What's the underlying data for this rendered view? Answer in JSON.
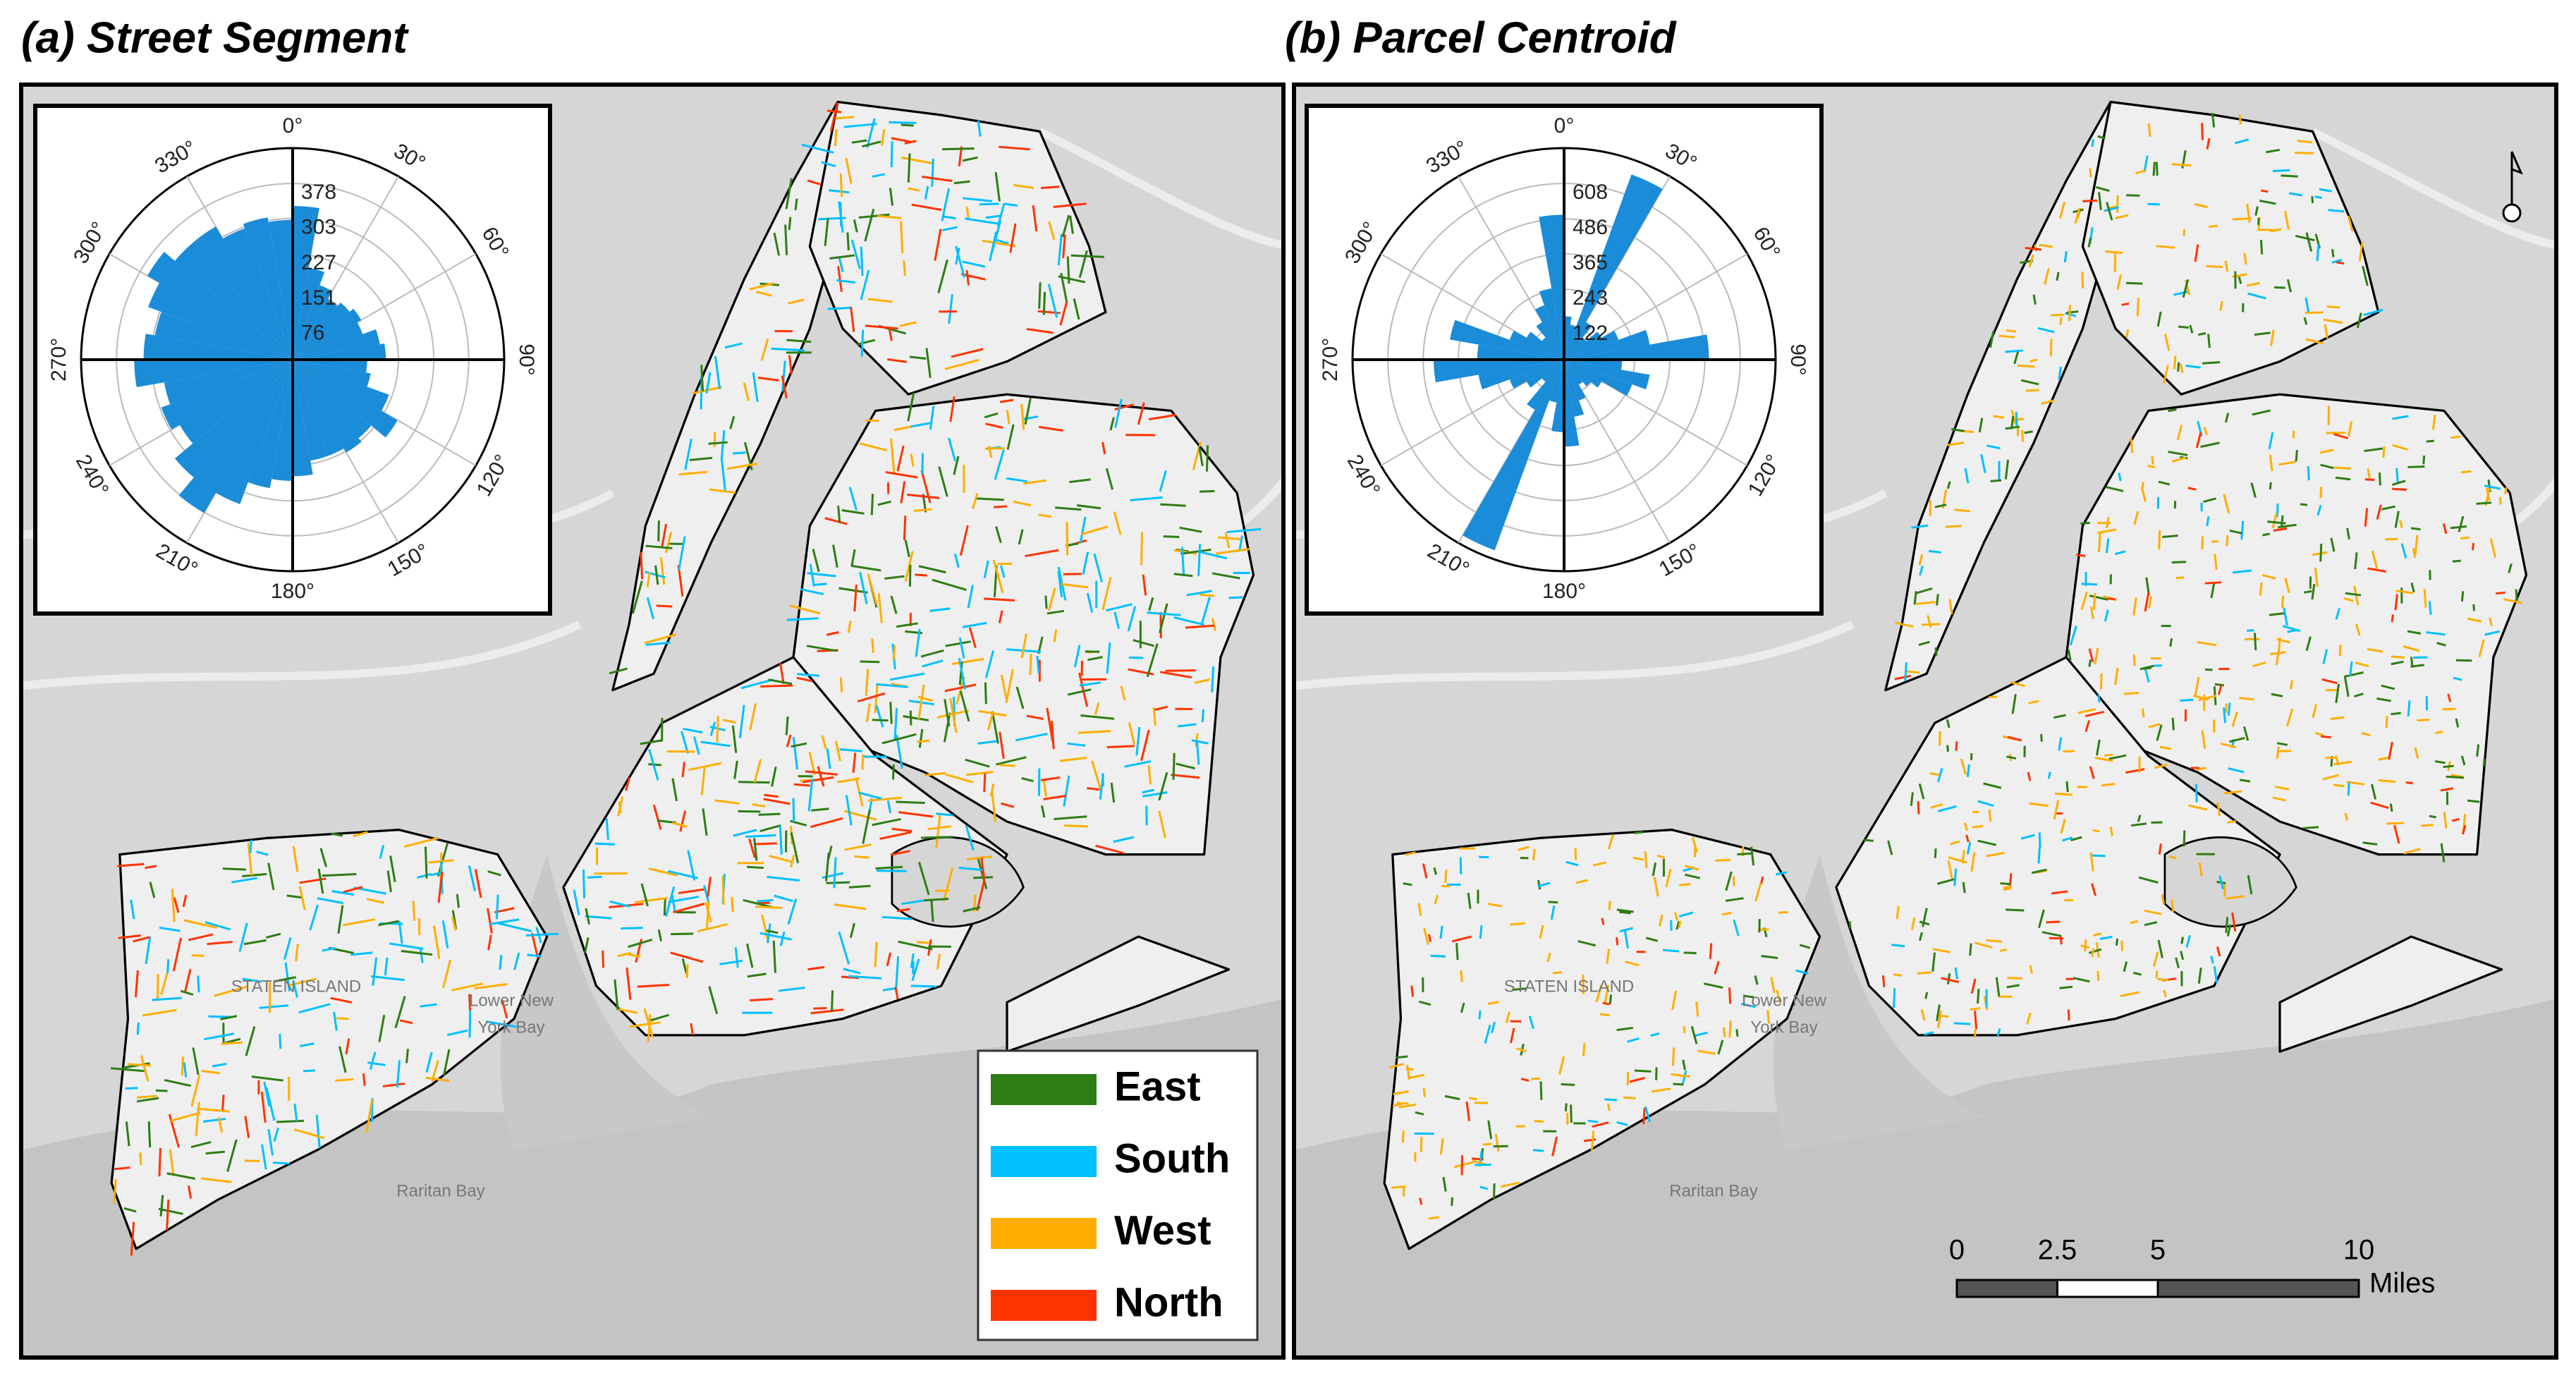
{
  "chart_data": [
    {
      "type": "rose",
      "title": "(a) Street Segment",
      "values": [
        330,
        200,
        170,
        150,
        160,
        170,
        160,
        190,
        200,
        160,
        170,
        220,
        260,
        220,
        230,
        220,
        220,
        250,
        260,
        280,
        330,
        380,
        330,
        280,
        300,
        280,
        340,
        320,
        300,
        330,
        360,
        330,
        330,
        300,
        310,
        300
      ],
      "color": "#1a8cd8",
      "rlim": [
        0,
        454
      ],
      "rticks": [
        76,
        151,
        227,
        303,
        378
      ],
      "angle_ticks": [
        {
          "value": 0,
          "label": "0°"
        },
        {
          "value": 30,
          "label": "30°"
        },
        {
          "value": 60,
          "label": "60°"
        },
        {
          "value": 90,
          "label": "90°"
        },
        {
          "value": 120,
          "label": "120°"
        },
        {
          "value": 150,
          "label": "150°"
        },
        {
          "value": 180,
          "label": "180°"
        },
        {
          "value": 210,
          "label": "210°"
        },
        {
          "value": 240,
          "label": "240°"
        },
        {
          "value": 270,
          "label": "270°"
        },
        {
          "value": 300,
          "label": "300°"
        },
        {
          "value": 330,
          "label": "330°"
        }
      ],
      "grid": true
    },
    {
      "type": "rose",
      "title": "(b) Parcel Centroid",
      "values": [
        150,
        120,
        680,
        150,
        100,
        150,
        200,
        300,
        500,
        200,
        300,
        250,
        150,
        120,
        100,
        150,
        200,
        300,
        250,
        150,
        700,
        200,
        100,
        150,
        200,
        300,
        450,
        300,
        400,
        200,
        150,
        100,
        150,
        200,
        250,
        500
      ],
      "color": "#1a8cd8",
      "rlim": [
        0,
        730
      ],
      "rticks": [
        122,
        243,
        365,
        486,
        608
      ],
      "angle_ticks": [
        {
          "value": 0,
          "label": "0°"
        },
        {
          "value": 30,
          "label": "30°"
        },
        {
          "value": 60,
          "label": "60°"
        },
        {
          "value": 90,
          "label": "90°"
        },
        {
          "value": 120,
          "label": "120°"
        },
        {
          "value": 150,
          "label": "150°"
        },
        {
          "value": 180,
          "label": "180°"
        },
        {
          "value": 210,
          "label": "210°"
        },
        {
          "value": 240,
          "label": "240°"
        },
        {
          "value": 270,
          "label": "270°"
        },
        {
          "value": 300,
          "label": "300°"
        },
        {
          "value": 330,
          "label": "330°"
        }
      ],
      "grid": true
    }
  ],
  "legend": {
    "items": [
      {
        "name": "East",
        "color": "#2e7d14"
      },
      {
        "name": "South",
        "color": "#00c0ff"
      },
      {
        "name": "West",
        "color": "#ffae00"
      },
      {
        "name": "North",
        "color": "#ff3300"
      }
    ]
  },
  "map_labels": [
    "STATEN ISLAND",
    "Lower New",
    "York Bay",
    "Raritan Bay"
  ],
  "scale_bar": {
    "ticks": [
      0,
      2.5,
      5,
      10
    ],
    "unit": "Miles"
  }
}
